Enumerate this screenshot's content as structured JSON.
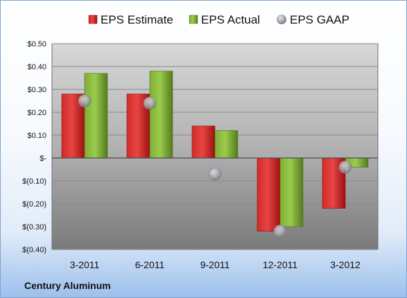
{
  "chart_data": {
    "type": "bar",
    "categories": [
      "3-2011",
      "6-2011",
      "9-2011",
      "12-2011",
      "3-2012"
    ],
    "series": [
      {
        "name": "EPS Estimate",
        "type": "bar",
        "color": "#cc1f1f",
        "values": [
          0.28,
          0.28,
          0.14,
          -0.32,
          -0.22
        ]
      },
      {
        "name": "EPS Actual",
        "type": "bar",
        "color": "#7cae2f",
        "values": [
          0.37,
          0.38,
          0.12,
          -0.3,
          -0.04
        ]
      },
      {
        "name": "EPS GAAP",
        "type": "scatter",
        "color": "#9aa0a8",
        "values": [
          0.25,
          0.24,
          -0.07,
          -0.32,
          -0.04
        ]
      }
    ],
    "ylim": [
      -0.4,
      0.5
    ],
    "ytick_values": [
      0.5,
      0.4,
      0.3,
      0.2,
      0.1,
      0,
      -0.1,
      -0.2,
      -0.3,
      -0.4
    ],
    "ytick_labels": [
      "$0.50",
      "$0.40",
      "$0.30",
      "$0.20",
      "$0.10",
      "$-",
      "$(0.10)",
      "$(0.20)",
      "$(0.30)",
      "$(0.40)"
    ],
    "legend_position": "top",
    "grid": true,
    "company": "Century Aluminum"
  }
}
